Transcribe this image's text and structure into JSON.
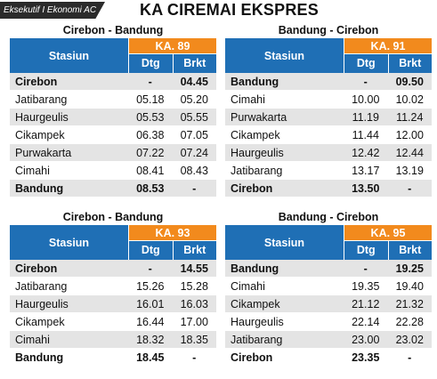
{
  "header": {
    "class_label": "Eksekutif I Ekonomi AC",
    "title": "KA CIREMAI EKSPRES"
  },
  "tables": [
    {
      "route": "Cirebon - Bandung",
      "train": "KA. 89",
      "col_station": "Stasiun",
      "col_arr": "Dtg",
      "col_dep": "Brkt",
      "rows": [
        {
          "station": "Cirebon",
          "arr": "-",
          "dep": "04.45"
        },
        {
          "station": "Jatibarang",
          "arr": "05.18",
          "dep": "05.20"
        },
        {
          "station": "Haurgeulis",
          "arr": "05.53",
          "dep": "05.55"
        },
        {
          "station": "Cikampek",
          "arr": "06.38",
          "dep": "07.05"
        },
        {
          "station": "Purwakarta",
          "arr": "07.22",
          "dep": "07.24"
        },
        {
          "station": "Cimahi",
          "arr": "08.41",
          "dep": "08.43"
        },
        {
          "station": "Bandung",
          "arr": "08.53",
          "dep": "-"
        }
      ]
    },
    {
      "route": "Bandung - Cirebon",
      "train": "KA. 91",
      "col_station": "Stasiun",
      "col_arr": "Dtg",
      "col_dep": "Brkt",
      "rows": [
        {
          "station": "Bandung",
          "arr": "-",
          "dep": "09.50"
        },
        {
          "station": "Cimahi",
          "arr": "10.00",
          "dep": "10.02"
        },
        {
          "station": "Purwakarta",
          "arr": "11.19",
          "dep": "11.24"
        },
        {
          "station": "Cikampek",
          "arr": "11.44",
          "dep": "12.00"
        },
        {
          "station": "Haurgeulis",
          "arr": "12.42",
          "dep": "12.44"
        },
        {
          "station": "Jatibarang",
          "arr": "13.17",
          "dep": "13.19"
        },
        {
          "station": "Cirebon",
          "arr": "13.50",
          "dep": "-"
        }
      ]
    },
    {
      "route": "Cirebon - Bandung",
      "train": "KA. 93",
      "col_station": "Stasiun",
      "col_arr": "Dtg",
      "col_dep": "Brkt",
      "rows": [
        {
          "station": "Cirebon",
          "arr": "-",
          "dep": "14.55"
        },
        {
          "station": "Jatibarang",
          "arr": "15.26",
          "dep": "15.28"
        },
        {
          "station": "Haurgeulis",
          "arr": "16.01",
          "dep": "16.03"
        },
        {
          "station": "Cikampek",
          "arr": "16.44",
          "dep": "17.00"
        },
        {
          "station": "Cimahi",
          "arr": "18.32",
          "dep": "18.35"
        },
        {
          "station": "Bandung",
          "arr": "18.45",
          "dep": "-"
        }
      ]
    },
    {
      "route": "Bandung - Cirebon",
      "train": "KA. 95",
      "col_station": "Stasiun",
      "col_arr": "Dtg",
      "col_dep": "Brkt",
      "rows": [
        {
          "station": "Bandung",
          "arr": "-",
          "dep": "19.25"
        },
        {
          "station": "Cimahi",
          "arr": "19.35",
          "dep": "19.40"
        },
        {
          "station": "Cikampek",
          "arr": "21.12",
          "dep": "21.32"
        },
        {
          "station": "Haurgeulis",
          "arr": "22.14",
          "dep": "22.28"
        },
        {
          "station": "Jatibarang",
          "arr": "23.00",
          "dep": "23.02"
        },
        {
          "station": "Cirebon",
          "arr": "23.35",
          "dep": "-"
        }
      ]
    }
  ]
}
